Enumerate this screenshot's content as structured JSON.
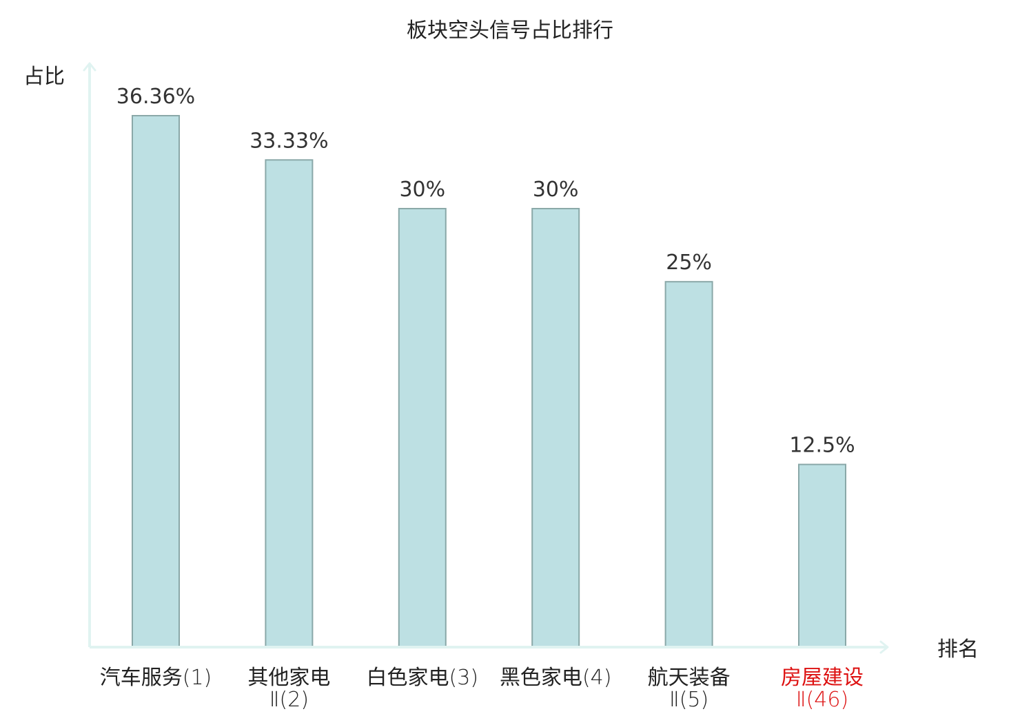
{
  "chart_data": {
    "type": "bar",
    "title": "板块空头信号占比排行",
    "xlabel": "排名",
    "ylabel": "占比",
    "categories": [
      {
        "name": "汽车服务",
        "name_cont": "",
        "rank": "(1)",
        "highlight": false
      },
      {
        "name": "其他家电",
        "name_cont": "Ⅱ",
        "rank": "(2)",
        "highlight": false
      },
      {
        "name": "白色家电",
        "name_cont": "",
        "rank": "(3)",
        "highlight": false
      },
      {
        "name": "黑色家电",
        "name_cont": "",
        "rank": "(4)",
        "highlight": false
      },
      {
        "name": "航天装备",
        "name_cont": "Ⅱ",
        "rank": "(5)",
        "highlight": false
      },
      {
        "name": "房屋建设",
        "name_cont": "Ⅱ",
        "rank": "(46)",
        "highlight": true
      }
    ],
    "values": [
      36.36,
      33.33,
      30,
      30,
      25,
      12.5
    ],
    "value_labels": [
      "36.36%",
      "33.33%",
      "30%",
      "30%",
      "25%",
      "12.5%"
    ],
    "ylim": [
      0,
      36.36
    ],
    "grid": false,
    "legend": "none",
    "colors": {
      "bar_fill": "#bde0e3",
      "bar_stroke": "#8aa8a8",
      "axis": "#e0f3f1",
      "text": "#333333",
      "highlight": "#dd1111"
    }
  }
}
